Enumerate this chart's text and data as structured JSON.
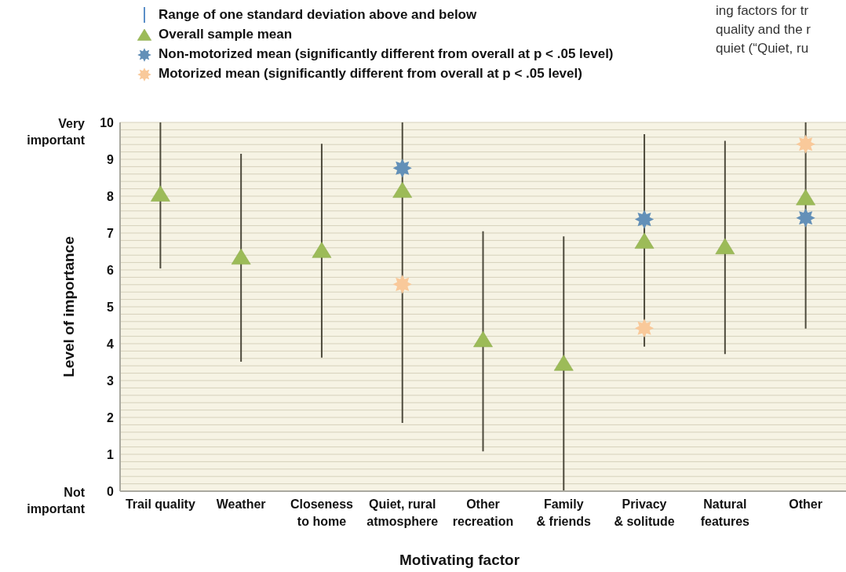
{
  "chart_data": {
    "type": "scatter",
    "categories": [
      "Trail quality",
      "Weather",
      "Closeness\nto home",
      "Quiet, rural\natmosphere",
      "Other\nrecreation",
      "Family\n& friends",
      "Privacy\n& solitude",
      "Natural\nfeatures",
      "Other"
    ],
    "series": [
      {
        "name": "Overall sample mean",
        "color": "#9cbb58",
        "marker": "triangle",
        "values": [
          8.05,
          6.34,
          6.52,
          8.15,
          4.1,
          3.46,
          6.77,
          6.62,
          7.95
        ],
        "errors": [
          [
            6.04,
            10
          ],
          [
            3.51,
            9.15
          ],
          [
            3.62,
            9.42
          ],
          [
            1.85,
            10
          ],
          [
            1.08,
            7.05
          ],
          [
            0,
            6.91
          ],
          [
            3.92,
            9.68
          ],
          [
            3.72,
            9.5
          ],
          [
            4.41,
            10
          ]
        ]
      },
      {
        "name": "Non-motorized mean (significantly different from overall at p < .05 level)",
        "color": "#6390b8",
        "marker": "star",
        "values": [
          null,
          null,
          null,
          8.76,
          null,
          null,
          7.37,
          null,
          7.41
        ]
      },
      {
        "name": "Motorized mean (significantly different from overall at p < .05 level)",
        "color": "#f9c99a",
        "marker": "star",
        "values": [
          null,
          null,
          null,
          5.61,
          null,
          null,
          4.42,
          null,
          9.41
        ]
      }
    ],
    "xlabel": "Motivating factor",
    "ylabel": "Level of importance",
    "ylim": [
      0,
      10
    ],
    "yticks": [
      0,
      {
        "value": 0.2,
        "label": null
      },
      {
        "value": 0.4,
        "label": null
      },
      {
        "value": 0.6,
        "label": null
      },
      {
        "value": 0.8,
        "label": null
      },
      1,
      {
        "value": 1.2,
        "label": null
      },
      {
        "value": 1.4,
        "label": null
      },
      {
        "value": 1.6,
        "label": null
      },
      {
        "value": 1.8,
        "label": null
      },
      2,
      {
        "value": 2.2,
        "label": null
      },
      {
        "value": 2.4,
        "label": null
      },
      {
        "value": 2.6,
        "label": null
      },
      {
        "value": 2.8,
        "label": null
      },
      3,
      {
        "value": 3.2,
        "label": null
      },
      {
        "value": 3.4,
        "label": null
      },
      {
        "value": 3.6,
        "label": null
      },
      {
        "value": 3.8,
        "label": null
      },
      4,
      {
        "value": 4.2,
        "label": null
      },
      {
        "value": 4.4,
        "label": null
      },
      {
        "value": 4.6,
        "label": null
      },
      {
        "value": 4.8,
        "label": null
      },
      5,
      {
        "value": 5.2,
        "label": null
      },
      {
        "value": 5.4,
        "label": null
      },
      {
        "value": 5.6,
        "label": null
      },
      {
        "value": 5.8,
        "label": null
      },
      6,
      {
        "value": 6.2,
        "label": null
      },
      {
        "value": 6.4,
        "label": null
      },
      {
        "value": 6.6,
        "label": null
      },
      {
        "value": 6.8,
        "label": null
      },
      7,
      {
        "value": 7.2,
        "label": null
      },
      {
        "value": 7.4,
        "label": null
      },
      {
        "value": 7.6,
        "label": null
      },
      {
        "value": 7.8,
        "label": null
      },
      8,
      {
        "value": 8.2,
        "label": null
      },
      {
        "value": 8.4,
        "label": null
      },
      {
        "value": 8.6,
        "label": null
      },
      {
        "value": 8.8,
        "label": null
      },
      9,
      {
        "value": 9.2,
        "label": null
      },
      {
        "value": 9.4,
        "label": null
      },
      {
        "value": 9.6,
        "label": null
      },
      {
        "value": 9.8,
        "label": null
      },
      10
    ],
    "grid": "y",
    "legend": "top left",
    "annotations": [
      "Range of one standard deviation above and below",
      "ing factors for tr",
      "quality and the r",
      "quiet (“Quiet, ru",
      "Very\nimportant",
      "Not\nimportant"
    ]
  }
}
